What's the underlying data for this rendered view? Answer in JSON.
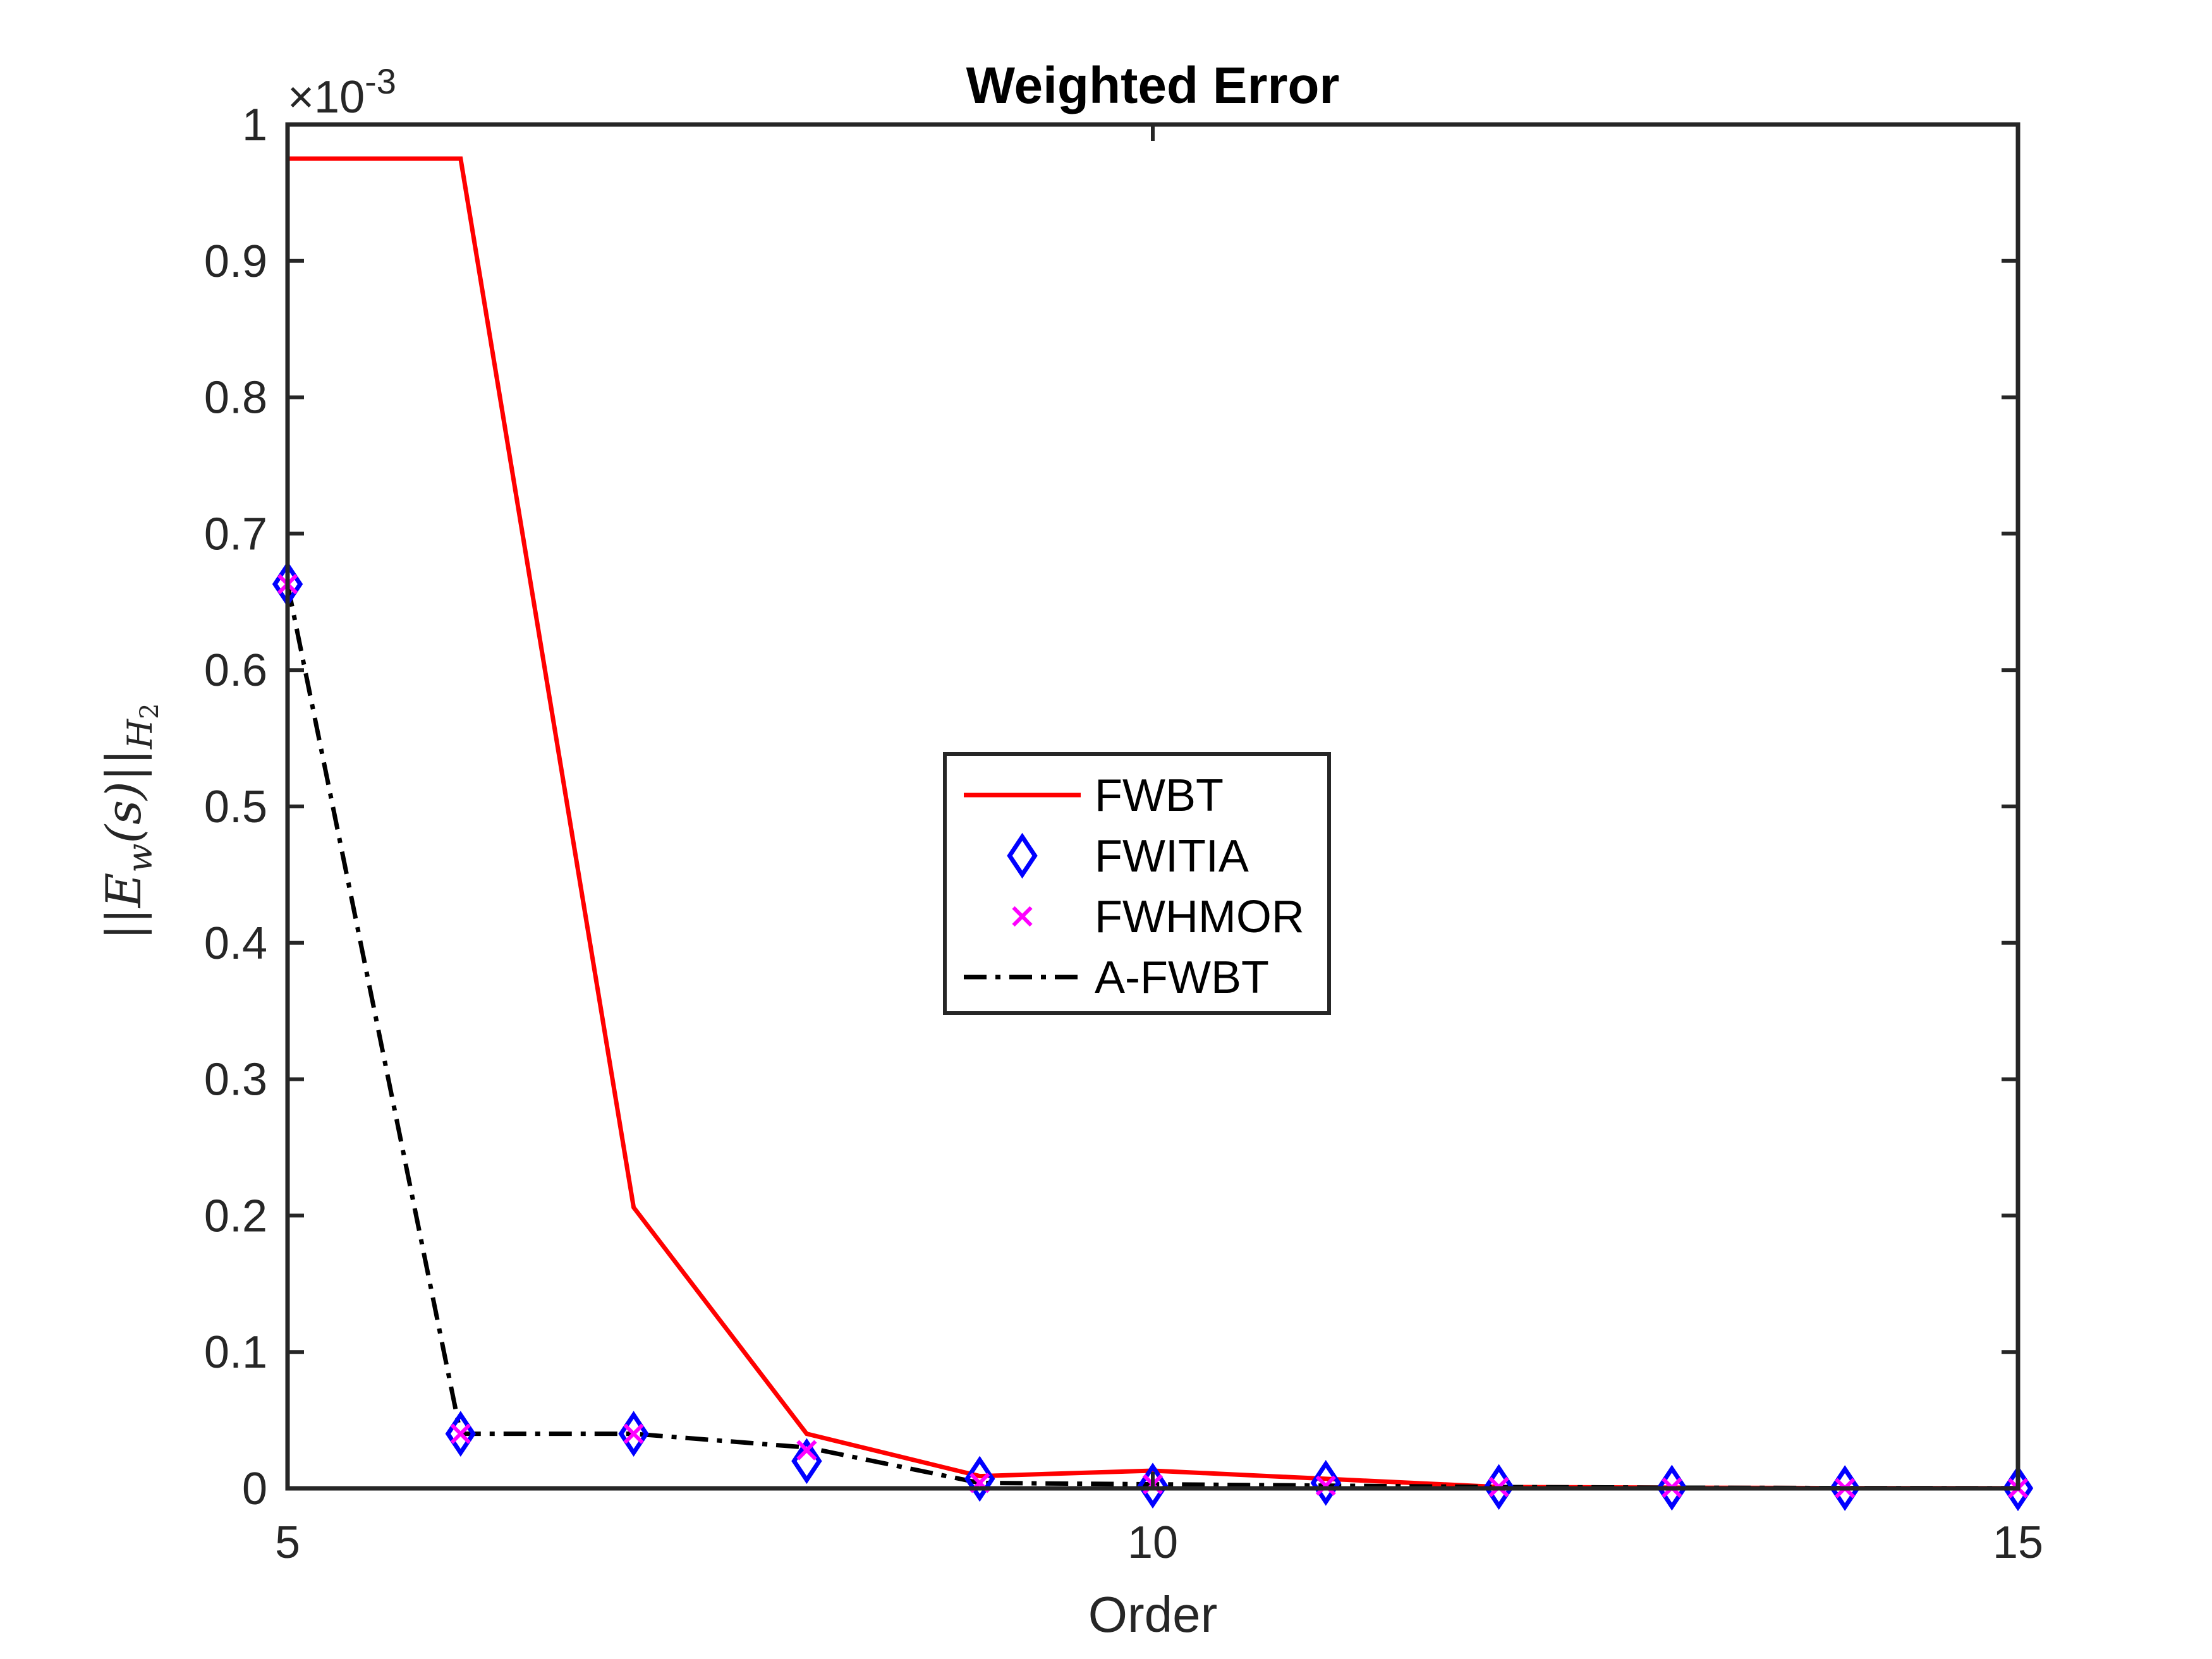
{
  "chart_data": {
    "type": "line",
    "title": "Weighted Error",
    "xlabel": "Order",
    "ylabel": "||E_w(s)||_{H_2}",
    "ylabel_parts": {
      "open": "||",
      "E": "E",
      "w": "w",
      "args": "(s)",
      "close": "||",
      "H": "H",
      "two": "2"
    },
    "y_exponent": {
      "base": "×10",
      "power": "-3"
    },
    "xlim": [
      5,
      15
    ],
    "ylim": [
      0,
      1.0
    ],
    "x_ticks": [
      5,
      10,
      15
    ],
    "x_tick_labels": [
      "5",
      "10",
      "15"
    ],
    "y_ticks": [
      0,
      0.1,
      0.2,
      0.3,
      0.4,
      0.5,
      0.6,
      0.7,
      0.8,
      0.9,
      1.0
    ],
    "y_tick_labels": [
      "0",
      "0.1",
      "0.2",
      "0.3",
      "0.4",
      "0.5",
      "0.6",
      "0.7",
      "0.8",
      "0.9",
      "1"
    ],
    "grid": false,
    "legend_position": "center",
    "x": [
      5,
      6,
      7,
      8,
      9,
      10,
      11,
      12,
      13,
      14,
      15
    ],
    "series": [
      {
        "name": "FWBT",
        "color": "#ff0000",
        "style": "solid-line",
        "values": [
          0.975,
          0.975,
          0.206,
          0.04,
          0.009,
          0.013,
          0.007,
          0.001,
          0.0005,
          0.0002,
          0.0001
        ]
      },
      {
        "name": "FWITIA",
        "color": "#0000ff",
        "style": "diamond-marker",
        "values": [
          0.663,
          0.04,
          0.04,
          0.02,
          0.007,
          0.002,
          0.004,
          0.001,
          0.0005,
          0.0002,
          0.0001
        ]
      },
      {
        "name": "FWHMOR",
        "color": "#ff00ff",
        "style": "x-marker",
        "values": [
          0.663,
          0.04,
          0.04,
          0.028,
          0.004,
          0.003,
          0.002,
          0.001,
          0.0005,
          0.0002,
          0.0001
        ]
      },
      {
        "name": "A-FWBT",
        "color": "#000000",
        "style": "dash-dot-line",
        "values": [
          0.663,
          0.04,
          0.04,
          0.03,
          0.004,
          0.003,
          0.002,
          0.001,
          0.0005,
          0.0002,
          0.0001
        ]
      }
    ]
  }
}
